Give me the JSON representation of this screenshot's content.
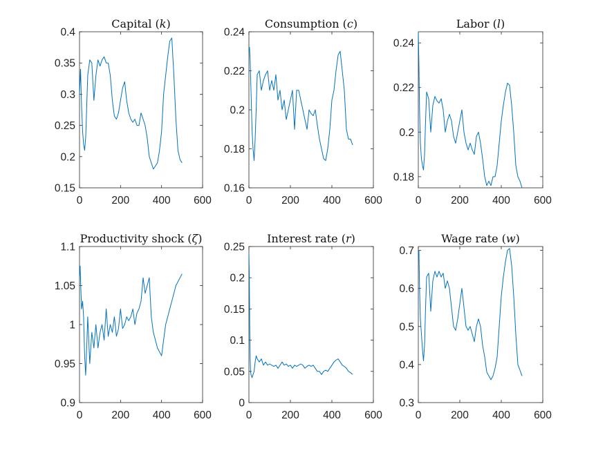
{
  "figure": {
    "background": "#ffffff",
    "line_color": "#0072BD"
  },
  "chart_data": [
    {
      "type": "line",
      "title_text": "Capital (",
      "title_sym": "k",
      "title_end": ")",
      "xlim": [
        0,
        600
      ],
      "ylim": [
        0.15,
        0.4
      ],
      "xticks": [
        0,
        200,
        400,
        600
      ],
      "xtick_labels": [
        "0",
        "200",
        "400",
        "600"
      ],
      "yticks": [
        0.15,
        0.2,
        0.25,
        0.3,
        0.35,
        0.4
      ],
      "ytick_labels": [
        "0.15",
        "0.2",
        "0.25",
        "0.3",
        "0.35",
        "0.4"
      ],
      "series": [
        {
          "name": "k",
          "x": [
            0,
            5,
            10,
            15,
            20,
            25,
            30,
            35,
            40,
            50,
            60,
            70,
            80,
            90,
            100,
            110,
            120,
            130,
            140,
            150,
            160,
            170,
            180,
            190,
            200,
            210,
            220,
            230,
            240,
            250,
            260,
            270,
            280,
            290,
            300,
            310,
            320,
            330,
            340,
            350,
            360,
            370,
            380,
            390,
            400,
            410,
            420,
            430,
            440,
            450,
            460,
            470,
            480,
            490,
            500
          ],
          "y": [
            0.3,
            0.34,
            0.28,
            0.24,
            0.22,
            0.21,
            0.23,
            0.28,
            0.33,
            0.355,
            0.35,
            0.29,
            0.33,
            0.355,
            0.345,
            0.355,
            0.36,
            0.35,
            0.35,
            0.33,
            0.29,
            0.265,
            0.26,
            0.27,
            0.29,
            0.31,
            0.32,
            0.29,
            0.27,
            0.26,
            0.255,
            0.26,
            0.25,
            0.25,
            0.27,
            0.26,
            0.25,
            0.23,
            0.2,
            0.19,
            0.18,
            0.185,
            0.19,
            0.21,
            0.24,
            0.3,
            0.33,
            0.36,
            0.385,
            0.39,
            0.33,
            0.26,
            0.21,
            0.195,
            0.19
          ]
        }
      ]
    },
    {
      "type": "line",
      "title_text": "Consumption (",
      "title_sym": "c",
      "title_end": ")",
      "xlim": [
        0,
        600
      ],
      "ylim": [
        0.16,
        0.24
      ],
      "xticks": [
        0,
        200,
        400,
        600
      ],
      "xtick_labels": [
        "0",
        "200",
        "400",
        "600"
      ],
      "yticks": [
        0.16,
        0.18,
        0.2,
        0.22,
        0.24
      ],
      "ytick_labels": [
        "0.16",
        "0.18",
        "0.2",
        "0.22",
        "0.24"
      ],
      "series": [
        {
          "name": "c",
          "x": [
            0,
            3,
            6,
            10,
            15,
            20,
            25,
            30,
            35,
            40,
            50,
            60,
            70,
            80,
            90,
            100,
            110,
            120,
            130,
            140,
            150,
            160,
            170,
            180,
            190,
            200,
            210,
            220,
            230,
            240,
            250,
            260,
            270,
            280,
            290,
            300,
            310,
            320,
            330,
            340,
            350,
            360,
            370,
            380,
            390,
            400,
            410,
            420,
            430,
            440,
            450,
            460,
            470,
            480,
            490,
            500
          ],
          "y": [
            0.23,
            0.232,
            0.225,
            0.21,
            0.19,
            0.18,
            0.174,
            0.185,
            0.2,
            0.218,
            0.22,
            0.21,
            0.215,
            0.218,
            0.22,
            0.21,
            0.215,
            0.21,
            0.218,
            0.205,
            0.21,
            0.2,
            0.205,
            0.195,
            0.2,
            0.205,
            0.21,
            0.19,
            0.21,
            0.21,
            0.205,
            0.2,
            0.195,
            0.19,
            0.2,
            0.198,
            0.197,
            0.2,
            0.192,
            0.185,
            0.18,
            0.175,
            0.174,
            0.18,
            0.19,
            0.205,
            0.21,
            0.22,
            0.228,
            0.23,
            0.22,
            0.21,
            0.19,
            0.185,
            0.185,
            0.182
          ]
        }
      ]
    },
    {
      "type": "line",
      "title_text": "Labor (",
      "title_sym": "l",
      "title_end": ")",
      "xlim": [
        0,
        600
      ],
      "ylim": [
        0.175,
        0.245
      ],
      "xticks": [
        0,
        200,
        400,
        600
      ],
      "xtick_labels": [
        "0",
        "200",
        "400",
        "600"
      ],
      "yticks": [
        0.18,
        0.2,
        0.22,
        0.24
      ],
      "ytick_labels": [
        "0.18",
        "0.2",
        "0.22",
        "0.24"
      ],
      "series": [
        {
          "name": "l",
          "x": [
            0,
            3,
            6,
            10,
            15,
            20,
            25,
            30,
            35,
            40,
            50,
            60,
            70,
            80,
            90,
            100,
            110,
            120,
            130,
            140,
            150,
            160,
            170,
            180,
            190,
            200,
            210,
            220,
            230,
            240,
            250,
            260,
            270,
            280,
            290,
            300,
            310,
            320,
            330,
            340,
            350,
            360,
            370,
            380,
            390,
            400,
            410,
            420,
            430,
            440,
            450,
            460,
            470,
            480,
            490,
            500
          ],
          "y": [
            0.245,
            0.23,
            0.21,
            0.195,
            0.188,
            0.185,
            0.183,
            0.19,
            0.205,
            0.218,
            0.215,
            0.2,
            0.212,
            0.216,
            0.214,
            0.213,
            0.215,
            0.21,
            0.2,
            0.205,
            0.208,
            0.205,
            0.198,
            0.195,
            0.2,
            0.205,
            0.21,
            0.2,
            0.195,
            0.192,
            0.195,
            0.192,
            0.19,
            0.198,
            0.2,
            0.195,
            0.188,
            0.18,
            0.176,
            0.178,
            0.176,
            0.18,
            0.18,
            0.185,
            0.195,
            0.205,
            0.212,
            0.218,
            0.222,
            0.221,
            0.212,
            0.2,
            0.185,
            0.18,
            0.178,
            0.175
          ]
        }
      ]
    },
    {
      "type": "line",
      "title_text": "Productivity shock (",
      "title_sym": "ζ",
      "title_end": ")",
      "xlim": [
        0,
        600
      ],
      "ylim": [
        0.9,
        1.1
      ],
      "xticks": [
        0,
        200,
        400,
        600
      ],
      "xtick_labels": [
        "0",
        "200",
        "400",
        "600"
      ],
      "yticks": [
        0.9,
        0.95,
        1,
        1.05,
        1.1
      ],
      "ytick_labels": [
        "0.9",
        "0.95",
        "1",
        "1.05",
        "1.1"
      ],
      "series": [
        {
          "name": "zeta",
          "x": [
            0,
            3,
            6,
            10,
            15,
            20,
            25,
            30,
            35,
            40,
            50,
            60,
            70,
            80,
            90,
            100,
            110,
            120,
            130,
            140,
            150,
            160,
            170,
            180,
            190,
            200,
            210,
            220,
            230,
            240,
            250,
            260,
            270,
            280,
            290,
            300,
            310,
            320,
            330,
            340,
            350,
            360,
            370,
            380,
            390,
            400,
            410,
            420,
            430,
            440,
            450,
            460,
            470,
            480,
            490,
            500
          ],
          "y": [
            1.06,
            1.075,
            1.05,
            1.02,
            1.03,
            1.01,
            0.96,
            0.935,
            0.97,
            1.01,
            0.95,
            0.99,
            0.97,
            1.0,
            0.97,
            0.99,
            1.0,
            0.98,
            1.02,
            0.985,
            1.0,
            0.99,
            1.01,
            0.985,
            0.995,
            1.02,
            0.995,
            1.0,
            1.01,
            1.005,
            1.01,
            1.02,
            1.0,
            1.015,
            1.02,
            1.03,
            1.06,
            1.04,
            1.05,
            1.06,
            1.01,
            0.99,
            0.98,
            0.97,
            0.965,
            0.96,
            0.98,
            1.0,
            1.01,
            1.02,
            1.03,
            1.04,
            1.05,
            1.055,
            1.06,
            1.065
          ]
        }
      ]
    },
    {
      "type": "line",
      "title_text": "Interest rate (",
      "title_sym": "r",
      "title_end": ")",
      "xlim": [
        0,
        600
      ],
      "ylim": [
        0,
        0.25
      ],
      "xticks": [
        0,
        200,
        400,
        600
      ],
      "xtick_labels": [
        "0",
        "200",
        "400",
        "600"
      ],
      "yticks": [
        0,
        0.05,
        0.1,
        0.15,
        0.2,
        0.25
      ],
      "ytick_labels": [
        "0",
        "0.05",
        "0.1",
        "0.15",
        "0.2",
        "0.25"
      ],
      "series": [
        {
          "name": "r",
          "x": [
            0,
            2,
            4,
            6,
            8,
            10,
            15,
            20,
            25,
            30,
            35,
            40,
            50,
            60,
            70,
            80,
            90,
            100,
            110,
            120,
            130,
            140,
            150,
            160,
            170,
            180,
            190,
            200,
            210,
            220,
            230,
            240,
            250,
            260,
            270,
            280,
            290,
            300,
            310,
            320,
            330,
            340,
            350,
            360,
            370,
            380,
            390,
            400,
            410,
            420,
            430,
            440,
            450,
            460,
            470,
            480,
            490,
            500
          ],
          "y": [
            0.24,
            0.2,
            0.12,
            0.07,
            0.05,
            0.045,
            0.04,
            0.045,
            0.05,
            0.065,
            0.075,
            0.07,
            0.065,
            0.07,
            0.06,
            0.065,
            0.06,
            0.062,
            0.06,
            0.058,
            0.06,
            0.055,
            0.06,
            0.065,
            0.06,
            0.062,
            0.058,
            0.06,
            0.055,
            0.06,
            0.058,
            0.06,
            0.062,
            0.06,
            0.055,
            0.058,
            0.06,
            0.058,
            0.06,
            0.055,
            0.05,
            0.05,
            0.045,
            0.05,
            0.052,
            0.05,
            0.055,
            0.06,
            0.065,
            0.068,
            0.07,
            0.065,
            0.06,
            0.058,
            0.055,
            0.05,
            0.048,
            0.045
          ]
        }
      ]
    },
    {
      "type": "line",
      "title_text": "Wage rate (",
      "title_sym": "w",
      "title_end": ")",
      "xlim": [
        0,
        600
      ],
      "ylim": [
        0.3,
        0.71
      ],
      "xticks": [
        0,
        200,
        400,
        600
      ],
      "xtick_labels": [
        "0",
        "200",
        "400",
        "600"
      ],
      "yticks": [
        0.3,
        0.4,
        0.5,
        0.6,
        0.7
      ],
      "ytick_labels": [
        "0.3",
        "0.4",
        "0.5",
        "0.6",
        "0.7"
      ],
      "series": [
        {
          "name": "w",
          "x": [
            0,
            3,
            6,
            10,
            15,
            20,
            25,
            30,
            35,
            40,
            50,
            60,
            70,
            80,
            90,
            100,
            110,
            120,
            130,
            140,
            150,
            160,
            170,
            180,
            190,
            200,
            210,
            220,
            230,
            240,
            250,
            260,
            270,
            280,
            290,
            300,
            310,
            320,
            330,
            340,
            350,
            360,
            370,
            380,
            390,
            400,
            410,
            420,
            430,
            440,
            450,
            460,
            470,
            480,
            490,
            500
          ],
          "y": [
            0.68,
            0.7,
            0.6,
            0.52,
            0.48,
            0.44,
            0.41,
            0.45,
            0.55,
            0.63,
            0.64,
            0.54,
            0.62,
            0.645,
            0.63,
            0.645,
            0.63,
            0.64,
            0.6,
            0.62,
            0.6,
            0.55,
            0.5,
            0.49,
            0.52,
            0.56,
            0.6,
            0.55,
            0.5,
            0.49,
            0.5,
            0.48,
            0.46,
            0.5,
            0.52,
            0.5,
            0.45,
            0.42,
            0.38,
            0.37,
            0.36,
            0.37,
            0.39,
            0.42,
            0.5,
            0.58,
            0.63,
            0.67,
            0.7,
            0.705,
            0.66,
            0.58,
            0.48,
            0.4,
            0.385,
            0.37
          ]
        }
      ]
    }
  ]
}
